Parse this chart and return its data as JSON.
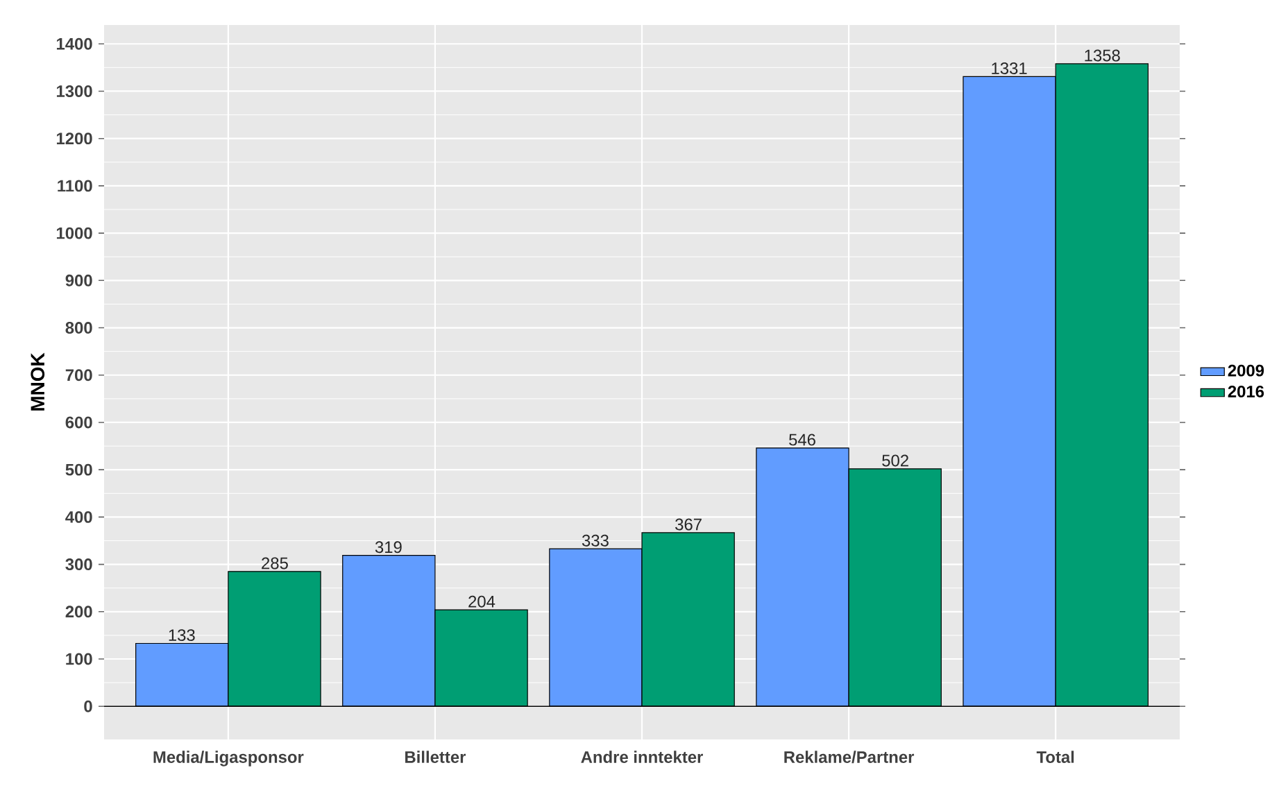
{
  "chart_data": {
    "type": "bar",
    "ylabel": "MNOK",
    "categories": [
      "Media/Ligasponsor",
      "Billetter",
      "Andre inntekter",
      "Reklame/Partner",
      "Total"
    ],
    "series": [
      {
        "name": "2009",
        "color": "#619cff",
        "values": [
          133,
          319,
          333,
          546,
          1331
        ]
      },
      {
        "name": "2016",
        "color": "#009e73",
        "values": [
          285,
          204,
          367,
          502,
          1358
        ]
      }
    ],
    "ylim": [
      -70,
      1440
    ],
    "yticks": [
      0,
      100,
      200,
      300,
      400,
      500,
      600,
      700,
      800,
      900,
      1000,
      1100,
      1200,
      1300,
      1400
    ],
    "grid": true,
    "legend": "right",
    "data_labels": true,
    "ref_lines": [
      {
        "axis": "y",
        "value": 0,
        "color": "#000000"
      }
    ]
  }
}
